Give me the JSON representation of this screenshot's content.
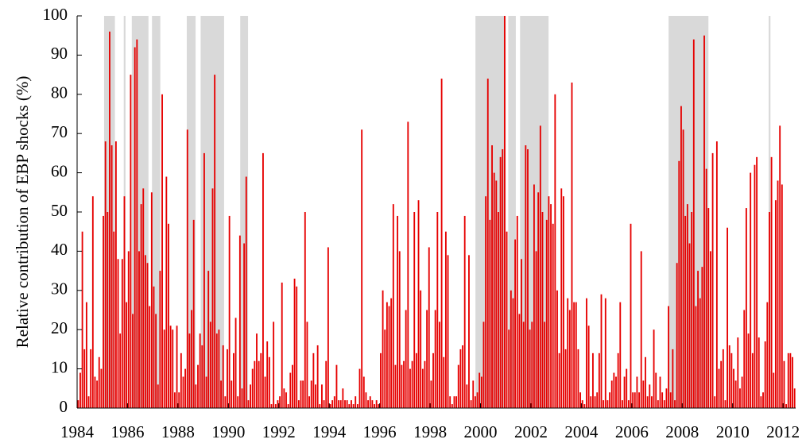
{
  "chart_data": {
    "type": "bar",
    "y_label": "Relative contribution of EBP shocks (%)",
    "color": "#e60000",
    "shade_color": "#d9d9d9",
    "shaded_periods": [
      [
        1985.07,
        1985.5
      ],
      [
        1985.85,
        1985.92
      ],
      [
        1986.17,
        1986.83
      ],
      [
        1986.97,
        1987.3
      ],
      [
        1988.35,
        1988.7
      ],
      [
        1988.9,
        1989.83
      ],
      [
        1990.47,
        1990.78
      ],
      [
        1999.8,
        2001.0
      ],
      [
        2001.1,
        2001.4
      ],
      [
        2001.57,
        2002.7
      ],
      [
        2007.46,
        2009.04
      ],
      [
        2011.43,
        2011.5
      ]
    ],
    "xlim": [
      1984,
      2012.5
    ],
    "xticks": [
      1984,
      1986,
      1988,
      1990,
      1992,
      1994,
      1996,
      1998,
      2000,
      2002,
      2004,
      2006,
      2008,
      2010,
      2012
    ],
    "ylim": [
      0,
      100
    ],
    "yticks": [
      0,
      10,
      20,
      30,
      40,
      50,
      60,
      70,
      80,
      90,
      100
    ],
    "values": [
      2,
      9,
      45,
      15,
      27,
      3,
      15,
      54,
      8,
      7,
      13,
      10,
      49,
      68,
      50,
      96,
      67,
      45,
      68,
      38,
      19,
      38,
      54,
      27,
      40,
      85,
      24,
      92,
      94,
      40,
      52,
      56,
      39,
      37,
      26,
      55,
      31,
      24,
      6,
      35,
      80,
      20,
      59,
      47,
      21,
      20,
      4,
      21,
      4,
      14,
      8,
      10,
      71,
      19,
      25,
      48,
      6,
      11,
      19,
      16,
      65,
      8,
      35,
      22,
      56,
      85,
      19,
      20,
      7,
      16,
      3,
      15,
      49,
      7,
      14,
      23,
      3,
      44,
      5,
      42,
      59,
      2,
      6,
      10,
      12,
      19,
      12,
      14,
      65,
      8,
      17,
      13,
      1,
      22,
      1,
      2,
      3,
      32,
      5,
      4,
      1,
      9,
      11,
      33,
      31,
      2,
      7,
      7,
      50,
      22,
      3,
      7,
      14,
      6,
      16,
      1,
      6,
      2,
      12,
      41,
      1,
      2,
      3,
      11,
      2,
      2,
      5,
      2,
      2,
      1,
      2,
      1,
      3,
      1,
      10,
      71,
      8,
      4,
      2,
      3,
      2,
      1,
      2,
      1,
      14,
      30,
      20,
      27,
      26,
      28,
      52,
      11,
      49,
      40,
      11,
      12,
      25,
      73,
      10,
      12,
      50,
      14,
      53,
      30,
      10,
      12,
      25,
      41,
      7,
      14,
      25,
      50,
      22,
      84,
      13,
      45,
      39,
      3,
      1,
      3,
      3,
      11,
      15,
      16,
      49,
      6,
      39,
      2,
      7,
      3,
      4,
      9,
      8,
      22,
      54,
      84,
      48,
      67,
      60,
      58,
      50,
      64,
      66,
      100,
      45,
      20,
      30,
      28,
      43,
      49,
      24,
      38,
      22,
      67,
      66,
      20,
      22,
      57,
      40,
      55,
      72,
      50,
      22,
      48,
      54,
      52,
      47,
      80,
      30,
      14,
      56,
      54,
      15,
      28,
      25,
      83,
      27,
      27,
      15,
      4,
      2,
      1,
      28,
      21,
      3,
      14,
      3,
      4,
      14,
      29,
      2,
      28,
      2,
      4,
      7,
      9,
      8,
      14,
      27,
      2,
      8,
      10,
      2,
      47,
      4,
      4,
      8,
      4,
      40,
      7,
      13,
      3,
      6,
      3,
      20,
      9,
      2,
      8,
      4,
      2,
      5,
      26,
      4,
      15,
      2,
      37,
      63,
      77,
      71,
      49,
      52,
      42,
      50,
      94,
      26,
      35,
      28,
      36,
      95,
      61,
      51,
      40,
      65,
      3,
      68,
      10,
      12,
      15,
      2,
      46,
      16,
      14,
      10,
      7,
      18,
      5,
      8,
      25,
      51,
      19,
      60,
      14,
      62,
      64,
      18,
      3,
      4,
      17,
      27,
      50,
      64,
      9,
      53,
      58,
      72,
      57,
      12,
      1,
      14,
      14,
      13,
      5
    ]
  }
}
